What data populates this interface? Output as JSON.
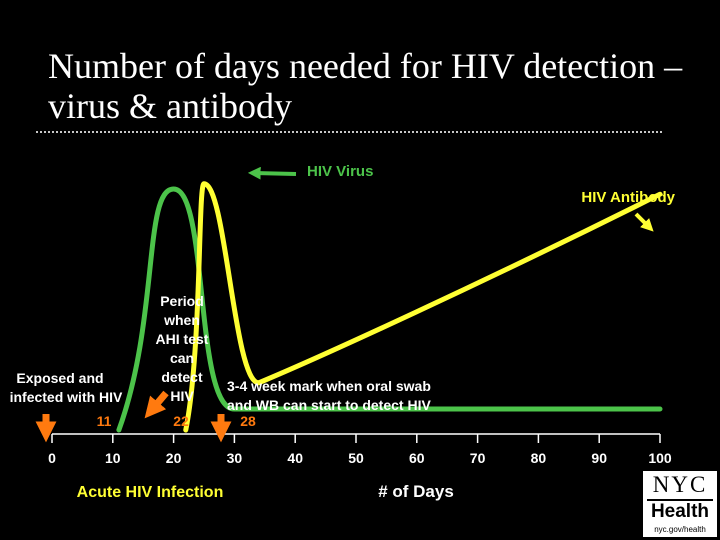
{
  "slide": {
    "title": "Number of days needed for HIV detection – virus & antibody"
  },
  "chart_data": {
    "type": "line",
    "x_axis": {
      "range": [
        0,
        100
      ],
      "ticks": [
        0,
        10,
        20,
        30,
        40,
        50,
        60,
        70,
        80,
        90,
        100
      ],
      "label": "# of Days"
    },
    "series": [
      {
        "name": "HIV Virus",
        "color": "#4cc34a",
        "points": [
          [
            11,
            0
          ],
          [
            20,
            92
          ],
          [
            30,
            8
          ],
          [
            100,
            8
          ]
        ]
      },
      {
        "name": "HIV Antibody",
        "color": "#ffff33",
        "points": [
          [
            22,
            0
          ],
          [
            25,
            94
          ],
          [
            34,
            18
          ],
          [
            100,
            90
          ]
        ]
      }
    ],
    "markers": [
      {
        "day": 0,
        "color": "#ff7a0f"
      },
      {
        "day": 22,
        "color": "#ff7a0f"
      }
    ],
    "annotations": {
      "virus_label": "HIV Virus",
      "antibody_label": "HIV Antibody",
      "exposed_line1": "Exposed and",
      "exposed_line2": "infected with HIV",
      "day_11": "11",
      "period_lines": [
        "Period",
        "when",
        "AHI test",
        "can",
        "detect",
        "HIV"
      ],
      "day_22": "22",
      "oral_line1": "3-4 week mark when oral swab",
      "oral_line2": "and WB can start to detect HIV",
      "day_28": "28",
      "acute": "Acute HIV Infection"
    }
  },
  "logo": {
    "line1": "NYC",
    "line2": "Health",
    "url": "nyc.gov/health"
  }
}
